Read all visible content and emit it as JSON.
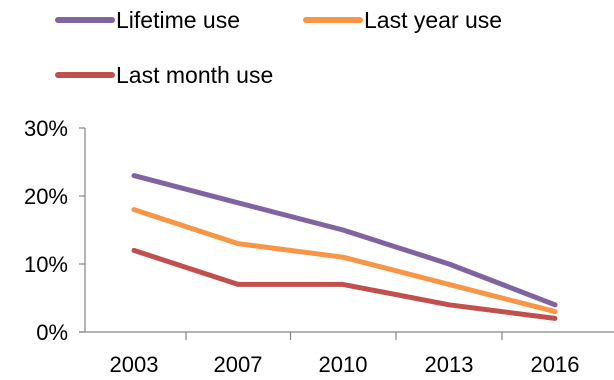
{
  "chart_data": {
    "type": "line",
    "title": "",
    "xlabel": "",
    "ylabel": "",
    "categories": [
      "2003",
      "2007",
      "2010",
      "2013",
      "2016"
    ],
    "ylim": [
      0,
      0.3
    ],
    "yticks": [
      0,
      0.1,
      0.2,
      0.3
    ],
    "ytick_labels": [
      "0%",
      "10%",
      "20%",
      "30%"
    ],
    "grid": false,
    "legend_position": "top",
    "series": [
      {
        "name": "Lifetime use",
        "color": "#8064A2",
        "values": [
          0.23,
          0.19,
          0.15,
          0.1,
          0.04
        ]
      },
      {
        "name": "Last year use",
        "color": "#F79646",
        "values": [
          0.18,
          0.13,
          0.11,
          0.07,
          0.03
        ]
      },
      {
        "name": "Last month use",
        "color": "#C0504D",
        "values": [
          0.12,
          0.07,
          0.07,
          0.04,
          0.02
        ]
      }
    ]
  }
}
